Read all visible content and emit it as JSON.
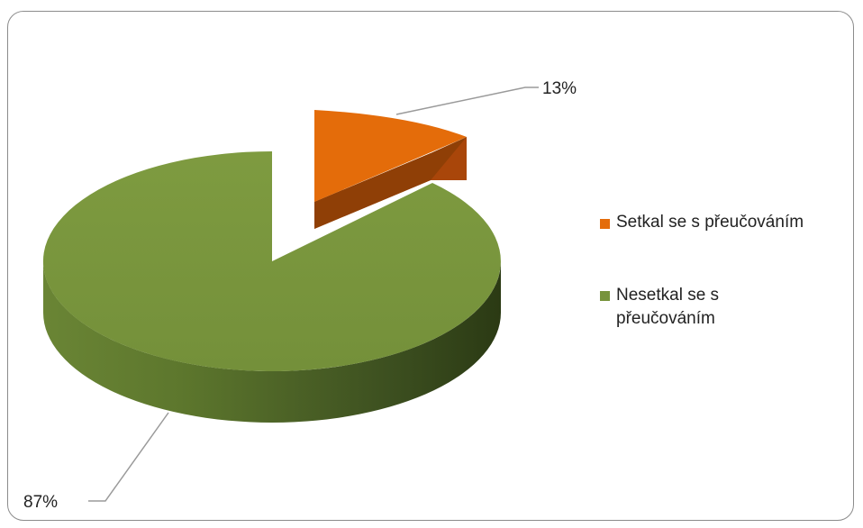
{
  "chart_data": {
    "type": "pie",
    "style": "3d-exploded",
    "categories": [
      "Setkal se s přeučováním",
      "Nesetkal se s přeučováním"
    ],
    "values": [
      13,
      87
    ],
    "labels": [
      "13%",
      "87%"
    ],
    "colors": [
      "#e46c0a",
      "#77933c"
    ],
    "legend_position": "right",
    "title": ""
  }
}
